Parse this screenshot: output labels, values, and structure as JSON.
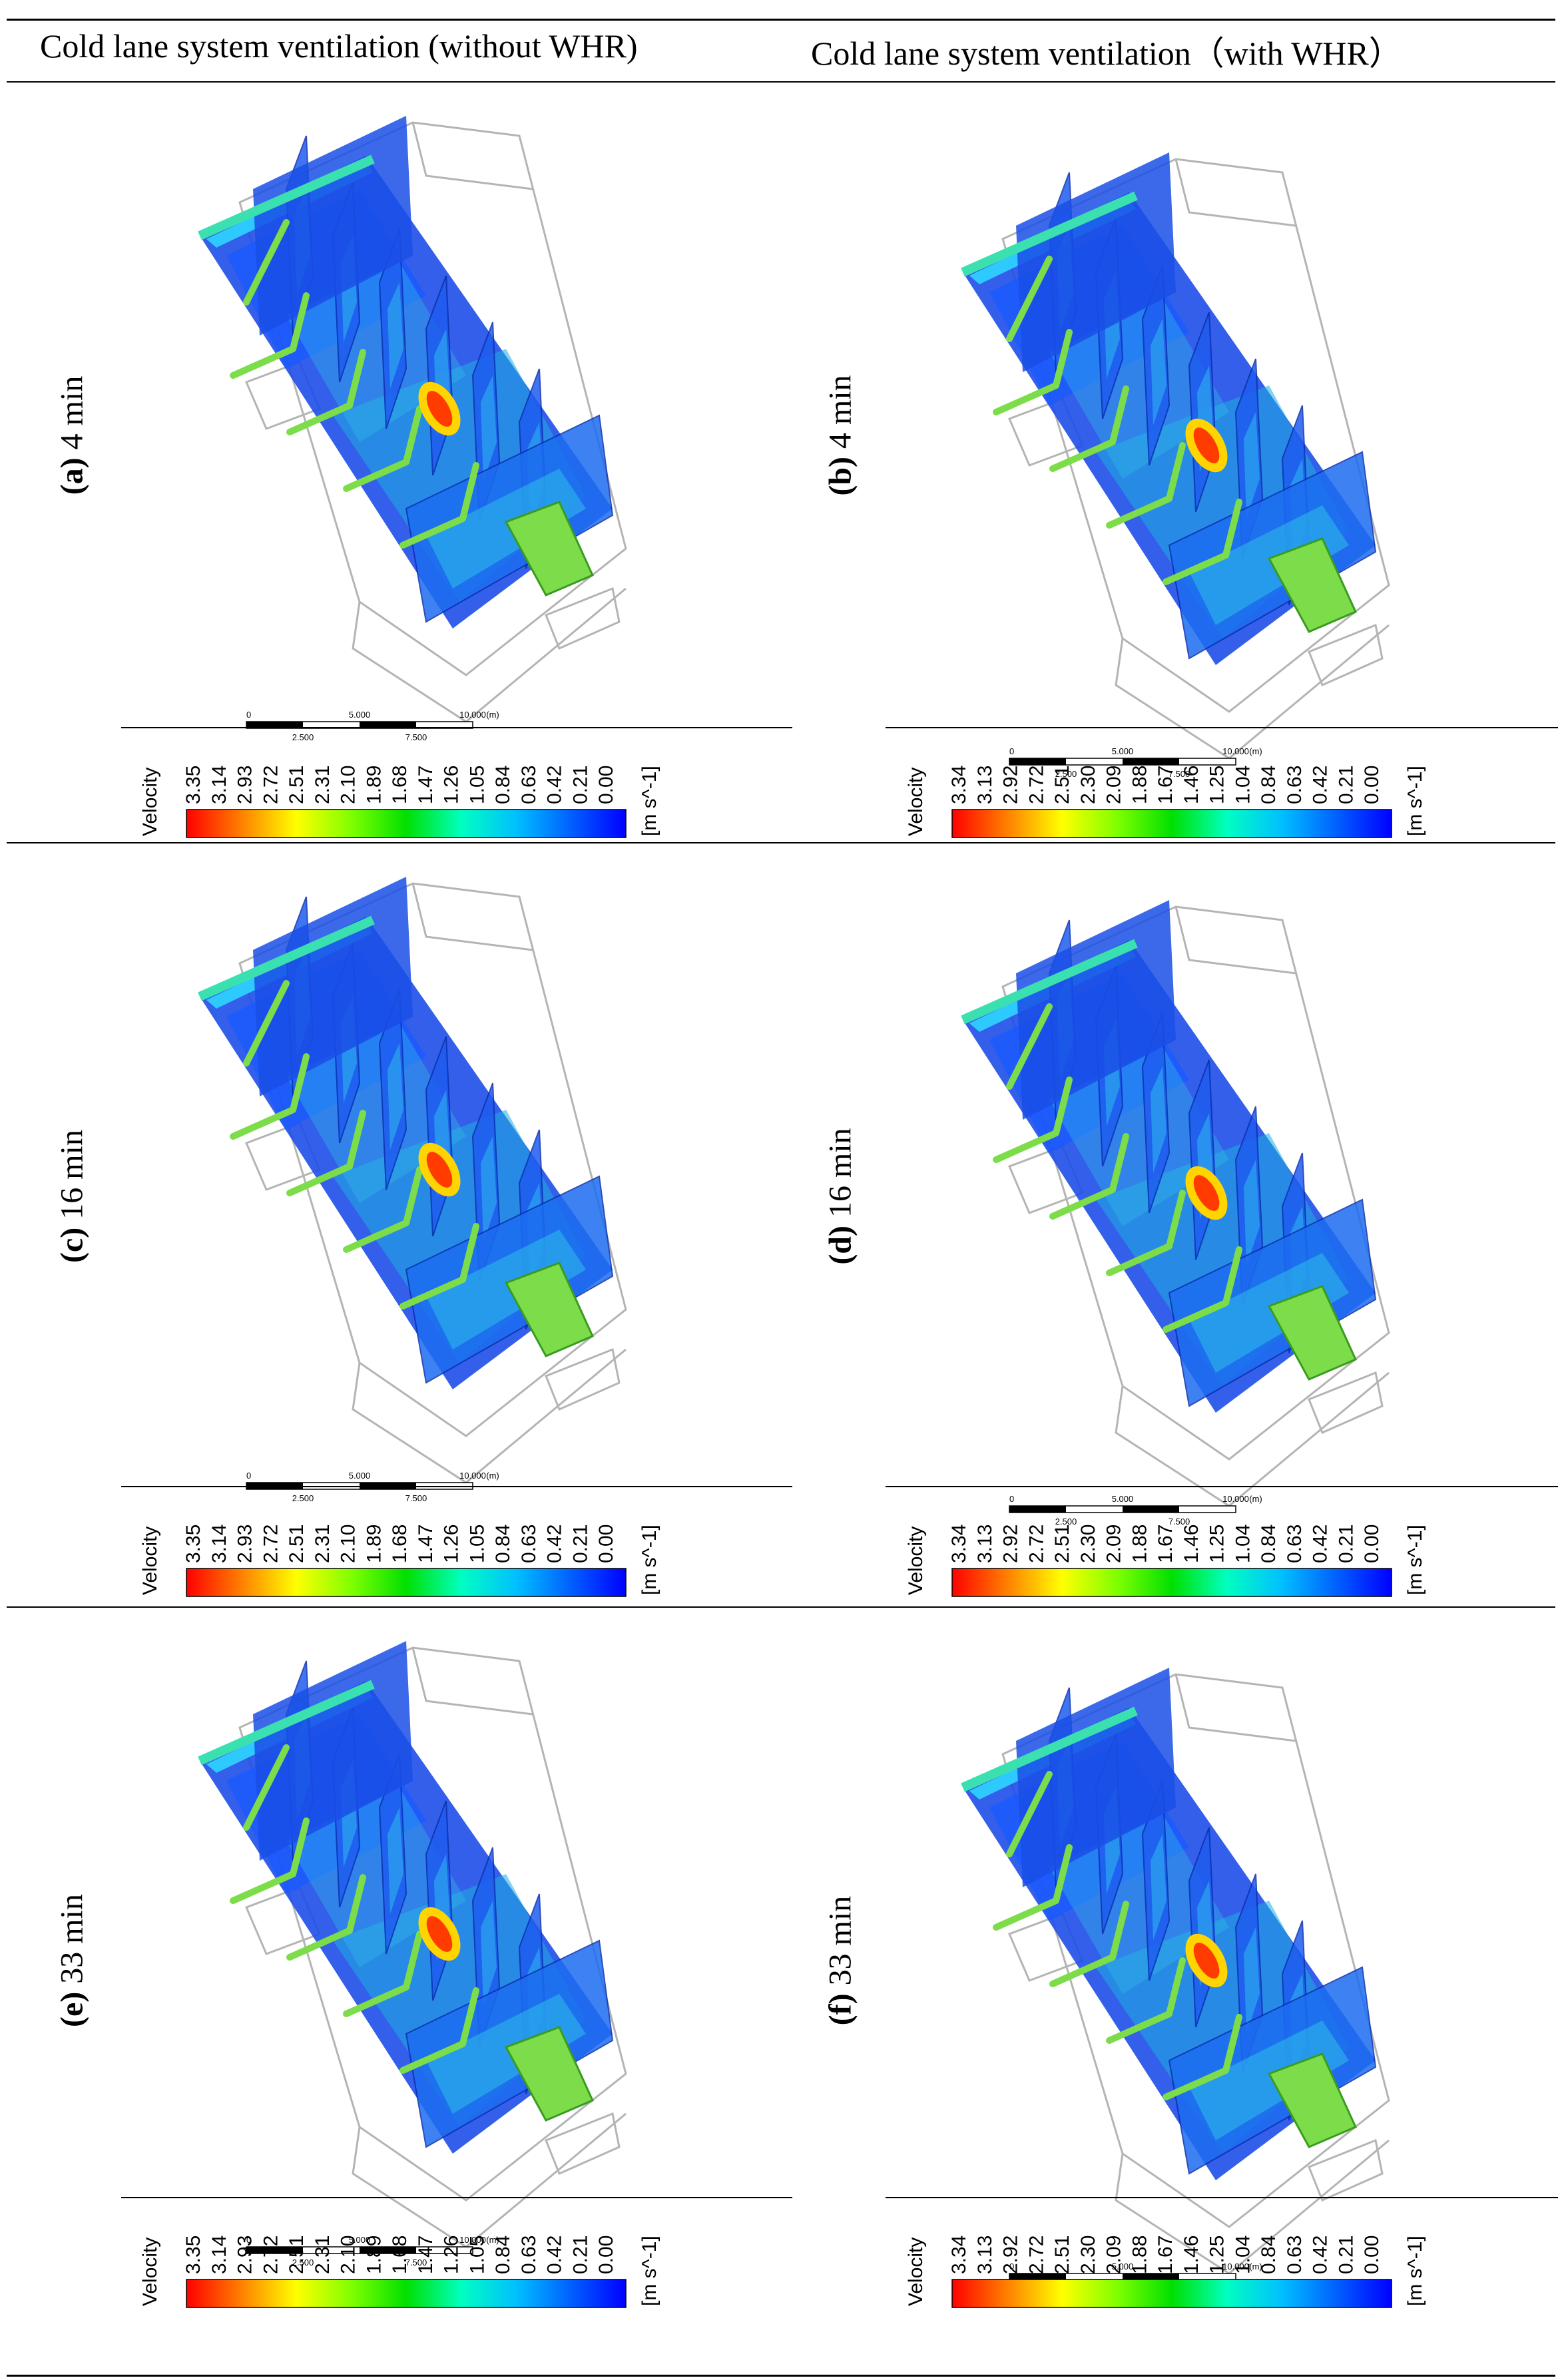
{
  "columns": [
    {
      "title": "Cold lane system ventilation (without WHR)"
    },
    {
      "title": "Cold lane system ventilation（with WHR）"
    }
  ],
  "panels": [
    {
      "id": "a",
      "label": "(a)",
      "time": "4 min",
      "col": 0,
      "row": 0
    },
    {
      "id": "b",
      "label": "(b)",
      "time": "4 min",
      "col": 1,
      "row": 0
    },
    {
      "id": "c",
      "label": "(c)",
      "time": "16 min",
      "col": 0,
      "row": 1
    },
    {
      "id": "d",
      "label": "(d)",
      "time": "16 min",
      "col": 1,
      "row": 1
    },
    {
      "id": "e",
      "label": "(e)",
      "time": "33 min",
      "col": 0,
      "row": 2
    },
    {
      "id": "f",
      "label": "(f)",
      "time": "33 min",
      "col": 1,
      "row": 2
    }
  ],
  "scale_bar": {
    "ticks_top": [
      "0",
      "5.000",
      "10.000",
      "(m)"
    ],
    "ticks_bottom": [
      "2.500",
      "7.500"
    ]
  },
  "colorbar": {
    "title": "Velocity",
    "unit": "[m s^-1]",
    "gradient": [
      "#ff0000",
      "#ff8000",
      "#ffff00",
      "#80ff00",
      "#00e000",
      "#00ffc0",
      "#00c0ff",
      "#0060ff",
      "#0000ff"
    ],
    "ticks_without_whr": [
      "3.35",
      "3.14",
      "2.93",
      "2.72",
      "2.51",
      "2.31",
      "2.10",
      "1.89",
      "1.68",
      "1.47",
      "1.26",
      "1.05",
      "0.84",
      "0.63",
      "0.42",
      "0.21",
      "0.00"
    ],
    "ticks_with_whr": [
      "3.34",
      "3.13",
      "2.92",
      "2.72",
      "2.51",
      "2.30",
      "2.09",
      "1.88",
      "1.67",
      "1.46",
      "1.25",
      "1.04",
      "0.84",
      "0.63",
      "0.42",
      "0.21",
      "0.00"
    ]
  },
  "colors": {
    "panel_blue": "#1d4ee8",
    "duct_green": "#7ddc4a",
    "hotspot": "#ff3b00",
    "outline": "#b4b4b4"
  }
}
